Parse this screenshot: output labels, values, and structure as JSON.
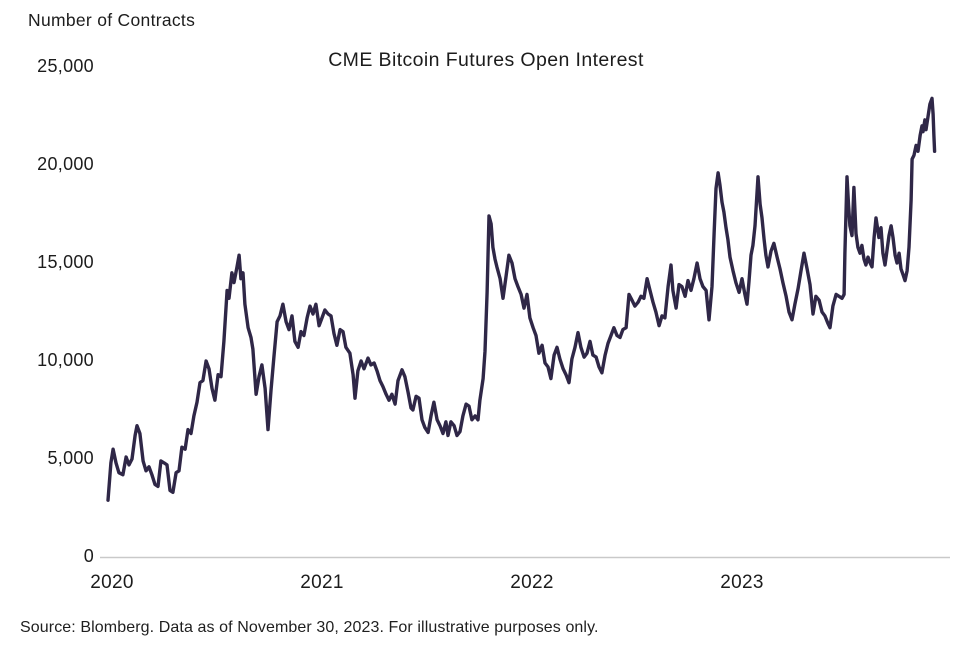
{
  "header": {
    "units_label": "Number of Contracts"
  },
  "footer": {
    "source_note": "Source: Blomberg. Data as of November 30, 2023. For illustrative purposes only."
  },
  "chart_data": {
    "type": "line",
    "title": "CME Bitcoin Futures Open Interest",
    "ylabel": "Number of Contracts",
    "xlabel": "",
    "series_name": "CME Bitcoin Futures Open Interest",
    "line_color": "#2f2747",
    "axis_color": "#c9c9c9",
    "text_color": "#1c1c1c",
    "grid": false,
    "legend": "none",
    "ylim": [
      0,
      25000
    ],
    "xlim": [
      2019.88,
      2023.97
    ],
    "y_ticks": [
      "25,000",
      "20,000",
      "15,000",
      "10,000",
      "5,000",
      "0"
    ],
    "y_tick_values": [
      25000,
      20000,
      15000,
      10000,
      5000,
      0
    ],
    "x_ticks": [
      "2020",
      "2021",
      "2022",
      "2023"
    ],
    "x_tick_values": [
      2020,
      2021,
      2022,
      2023
    ],
    "points": [
      [
        2019.981,
        2900
      ],
      [
        2019.995,
        4800
      ],
      [
        2020.005,
        5500
      ],
      [
        2020.019,
        4800
      ],
      [
        2020.033,
        4300
      ],
      [
        2020.052,
        4200
      ],
      [
        2020.067,
        5100
      ],
      [
        2020.081,
        4700
      ],
      [
        2020.095,
        5000
      ],
      [
        2020.11,
        6200
      ],
      [
        2020.119,
        6700
      ],
      [
        2020.133,
        6300
      ],
      [
        2020.148,
        4900
      ],
      [
        2020.162,
        4400
      ],
      [
        2020.176,
        4600
      ],
      [
        2020.19,
        4200
      ],
      [
        2020.205,
        3700
      ],
      [
        2020.219,
        3600
      ],
      [
        2020.233,
        4900
      ],
      [
        2020.248,
        4800
      ],
      [
        2020.262,
        4700
      ],
      [
        2020.276,
        3400
      ],
      [
        2020.29,
        3300
      ],
      [
        2020.305,
        4300
      ],
      [
        2020.319,
        4400
      ],
      [
        2020.333,
        5600
      ],
      [
        2020.348,
        5500
      ],
      [
        2020.362,
        6500
      ],
      [
        2020.376,
        6300
      ],
      [
        2020.39,
        7200
      ],
      [
        2020.405,
        7900
      ],
      [
        2020.419,
        8900
      ],
      [
        2020.433,
        9000
      ],
      [
        2020.448,
        10000
      ],
      [
        2020.462,
        9600
      ],
      [
        2020.476,
        8600
      ],
      [
        2020.49,
        8000
      ],
      [
        2020.505,
        9300
      ],
      [
        2020.519,
        9200
      ],
      [
        2020.533,
        11000
      ],
      [
        2020.548,
        13600
      ],
      [
        2020.557,
        13200
      ],
      [
        2020.571,
        14500
      ],
      [
        2020.581,
        14000
      ],
      [
        2020.595,
        14800
      ],
      [
        2020.605,
        15400
      ],
      [
        2020.614,
        14200
      ],
      [
        2020.624,
        14500
      ],
      [
        2020.633,
        12900
      ],
      [
        2020.648,
        11700
      ],
      [
        2020.662,
        11200
      ],
      [
        2020.671,
        10600
      ],
      [
        2020.686,
        8300
      ],
      [
        2020.7,
        9200
      ],
      [
        2020.714,
        9800
      ],
      [
        2020.729,
        8600
      ],
      [
        2020.743,
        6500
      ],
      [
        2020.757,
        8500
      ],
      [
        2020.771,
        10200
      ],
      [
        2020.786,
        12000
      ],
      [
        2020.8,
        12300
      ],
      [
        2020.814,
        12900
      ],
      [
        2020.829,
        12000
      ],
      [
        2020.843,
        11600
      ],
      [
        2020.857,
        12300
      ],
      [
        2020.871,
        11000
      ],
      [
        2020.886,
        10700
      ],
      [
        2020.9,
        11500
      ],
      [
        2020.914,
        11300
      ],
      [
        2020.929,
        12200
      ],
      [
        2020.943,
        12800
      ],
      [
        2020.957,
        12400
      ],
      [
        2020.971,
        12900
      ],
      [
        2020.986,
        11800
      ],
      [
        2021.0,
        12200
      ],
      [
        2021.014,
        12600
      ],
      [
        2021.029,
        12400
      ],
      [
        2021.043,
        12300
      ],
      [
        2021.057,
        11400
      ],
      [
        2021.071,
        10800
      ],
      [
        2021.086,
        11600
      ],
      [
        2021.1,
        11500
      ],
      [
        2021.114,
        10700
      ],
      [
        2021.133,
        10400
      ],
      [
        2021.148,
        9300
      ],
      [
        2021.157,
        8100
      ],
      [
        2021.171,
        9500
      ],
      [
        2021.186,
        10000
      ],
      [
        2021.2,
        9600
      ],
      [
        2021.219,
        10150
      ],
      [
        2021.233,
        9800
      ],
      [
        2021.248,
        9900
      ],
      [
        2021.262,
        9500
      ],
      [
        2021.276,
        9000
      ],
      [
        2021.29,
        8700
      ],
      [
        2021.305,
        8300
      ],
      [
        2021.319,
        8000
      ],
      [
        2021.333,
        8300
      ],
      [
        2021.348,
        7800
      ],
      [
        2021.362,
        9000
      ],
      [
        2021.381,
        9550
      ],
      [
        2021.395,
        9200
      ],
      [
        2021.41,
        8400
      ],
      [
        2021.424,
        7600
      ],
      [
        2021.433,
        7500
      ],
      [
        2021.448,
        8200
      ],
      [
        2021.462,
        8100
      ],
      [
        2021.476,
        7000
      ],
      [
        2021.49,
        6600
      ],
      [
        2021.505,
        6350
      ],
      [
        2021.519,
        7200
      ],
      [
        2021.533,
        7900
      ],
      [
        2021.548,
        7000
      ],
      [
        2021.562,
        6700
      ],
      [
        2021.576,
        6300
      ],
      [
        2021.59,
        6900
      ],
      [
        2021.6,
        6200
      ],
      [
        2021.614,
        6900
      ],
      [
        2021.629,
        6700
      ],
      [
        2021.643,
        6200
      ],
      [
        2021.657,
        6400
      ],
      [
        2021.671,
        7200
      ],
      [
        2021.686,
        7800
      ],
      [
        2021.7,
        7700
      ],
      [
        2021.714,
        7000
      ],
      [
        2021.729,
        7200
      ],
      [
        2021.743,
        7000
      ],
      [
        2021.752,
        8000
      ],
      [
        2021.767,
        9100
      ],
      [
        2021.776,
        10500
      ],
      [
        2021.786,
        13500
      ],
      [
        2021.795,
        17400
      ],
      [
        2021.805,
        17000
      ],
      [
        2021.814,
        15800
      ],
      [
        2021.824,
        15200
      ],
      [
        2021.833,
        14800
      ],
      [
        2021.848,
        14200
      ],
      [
        2021.862,
        13200
      ],
      [
        2021.876,
        14300
      ],
      [
        2021.89,
        15400
      ],
      [
        2021.905,
        15000
      ],
      [
        2021.919,
        14200
      ],
      [
        2021.933,
        13800
      ],
      [
        2021.948,
        13400
      ],
      [
        2021.962,
        12700
      ],
      [
        2021.976,
        13400
      ],
      [
        2021.99,
        12200
      ],
      [
        2022.005,
        11700
      ],
      [
        2022.019,
        11300
      ],
      [
        2022.033,
        10400
      ],
      [
        2022.048,
        10800
      ],
      [
        2022.062,
        9900
      ],
      [
        2022.076,
        9700
      ],
      [
        2022.09,
        9100
      ],
      [
        2022.105,
        10300
      ],
      [
        2022.119,
        10700
      ],
      [
        2022.133,
        10100
      ],
      [
        2022.148,
        9600
      ],
      [
        2022.162,
        9300
      ],
      [
        2022.176,
        8900
      ],
      [
        2022.19,
        10100
      ],
      [
        2022.205,
        10700
      ],
      [
        2022.219,
        11450
      ],
      [
        2022.233,
        10700
      ],
      [
        2022.248,
        10200
      ],
      [
        2022.262,
        10400
      ],
      [
        2022.276,
        11000
      ],
      [
        2022.29,
        10300
      ],
      [
        2022.305,
        10200
      ],
      [
        2022.319,
        9700
      ],
      [
        2022.333,
        9400
      ],
      [
        2022.348,
        10300
      ],
      [
        2022.362,
        10900
      ],
      [
        2022.376,
        11300
      ],
      [
        2022.39,
        11700
      ],
      [
        2022.405,
        11300
      ],
      [
        2022.419,
        11200
      ],
      [
        2022.433,
        11600
      ],
      [
        2022.448,
        11700
      ],
      [
        2022.462,
        13400
      ],
      [
        2022.476,
        13100
      ],
      [
        2022.49,
        12800
      ],
      [
        2022.505,
        13000
      ],
      [
        2022.519,
        13300
      ],
      [
        2022.533,
        13200
      ],
      [
        2022.548,
        14200
      ],
      [
        2022.562,
        13600
      ],
      [
        2022.576,
        13000
      ],
      [
        2022.59,
        12500
      ],
      [
        2022.605,
        11800
      ],
      [
        2022.619,
        12300
      ],
      [
        2022.633,
        12200
      ],
      [
        2022.648,
        13800
      ],
      [
        2022.662,
        14900
      ],
      [
        2022.671,
        13600
      ],
      [
        2022.686,
        12700
      ],
      [
        2022.7,
        13900
      ],
      [
        2022.714,
        13800
      ],
      [
        2022.729,
        13300
      ],
      [
        2022.743,
        14100
      ],
      [
        2022.757,
        13600
      ],
      [
        2022.771,
        14200
      ],
      [
        2022.786,
        15000
      ],
      [
        2022.8,
        14200
      ],
      [
        2022.814,
        13800
      ],
      [
        2022.829,
        13600
      ],
      [
        2022.843,
        12100
      ],
      [
        2022.857,
        13800
      ],
      [
        2022.867,
        16500
      ],
      [
        2022.876,
        18800
      ],
      [
        2022.886,
        19600
      ],
      [
        2022.895,
        19000
      ],
      [
        2022.905,
        18100
      ],
      [
        2022.914,
        17600
      ],
      [
        2022.924,
        16800
      ],
      [
        2022.933,
        16200
      ],
      [
        2022.943,
        15300
      ],
      [
        2022.957,
        14600
      ],
      [
        2022.971,
        14000
      ],
      [
        2022.986,
        13500
      ],
      [
        2023.0,
        14200
      ],
      [
        2023.014,
        13400
      ],
      [
        2023.024,
        12900
      ],
      [
        2023.033,
        14000
      ],
      [
        2023.043,
        15400
      ],
      [
        2023.052,
        15900
      ],
      [
        2023.062,
        16900
      ],
      [
        2023.076,
        19400
      ],
      [
        2023.086,
        18000
      ],
      [
        2023.095,
        17300
      ],
      [
        2023.105,
        16200
      ],
      [
        2023.114,
        15400
      ],
      [
        2023.124,
        14800
      ],
      [
        2023.138,
        15600
      ],
      [
        2023.152,
        16000
      ],
      [
        2023.167,
        15300
      ],
      [
        2023.181,
        14700
      ],
      [
        2023.195,
        14000
      ],
      [
        2023.21,
        13300
      ],
      [
        2023.224,
        12500
      ],
      [
        2023.238,
        12100
      ],
      [
        2023.252,
        12900
      ],
      [
        2023.267,
        13700
      ],
      [
        2023.281,
        14600
      ],
      [
        2023.295,
        15500
      ],
      [
        2023.31,
        14700
      ],
      [
        2023.324,
        13900
      ],
      [
        2023.338,
        12400
      ],
      [
        2023.352,
        13300
      ],
      [
        2023.367,
        13100
      ],
      [
        2023.381,
        12500
      ],
      [
        2023.395,
        12300
      ],
      [
        2023.41,
        11900
      ],
      [
        2023.419,
        11700
      ],
      [
        2023.433,
        12800
      ],
      [
        2023.448,
        13400
      ],
      [
        2023.462,
        13300
      ],
      [
        2023.476,
        13200
      ],
      [
        2023.486,
        13400
      ],
      [
        2023.49,
        15500
      ],
      [
        2023.5,
        19400
      ],
      [
        2023.507,
        18000
      ],
      [
        2023.514,
        16900
      ],
      [
        2023.524,
        16400
      ],
      [
        2023.533,
        18850
      ],
      [
        2023.543,
        16500
      ],
      [
        2023.552,
        15800
      ],
      [
        2023.562,
        15500
      ],
      [
        2023.571,
        15900
      ],
      [
        2023.581,
        15200
      ],
      [
        2023.59,
        14900
      ],
      [
        2023.6,
        15300
      ],
      [
        2023.61,
        15000
      ],
      [
        2023.619,
        14800
      ],
      [
        2023.629,
        16300
      ],
      [
        2023.638,
        17300
      ],
      [
        2023.652,
        16300
      ],
      [
        2023.662,
        16800
      ],
      [
        2023.671,
        15500
      ],
      [
        2023.681,
        14900
      ],
      [
        2023.69,
        15600
      ],
      [
        2023.7,
        16400
      ],
      [
        2023.71,
        16900
      ],
      [
        2023.719,
        16300
      ],
      [
        2023.729,
        15400
      ],
      [
        2023.738,
        15000
      ],
      [
        2023.748,
        15500
      ],
      [
        2023.757,
        14700
      ],
      [
        2023.767,
        14400
      ],
      [
        2023.776,
        14100
      ],
      [
        2023.786,
        14600
      ],
      [
        2023.795,
        15800
      ],
      [
        2023.805,
        18200
      ],
      [
        2023.81,
        20300
      ],
      [
        2023.819,
        20500
      ],
      [
        2023.829,
        21000
      ],
      [
        2023.838,
        20700
      ],
      [
        2023.848,
        21500
      ],
      [
        2023.857,
        22000
      ],
      [
        2023.862,
        21700
      ],
      [
        2023.871,
        22300
      ],
      [
        2023.876,
        21800
      ],
      [
        2023.886,
        22500
      ],
      [
        2023.895,
        23100
      ],
      [
        2023.905,
        23400
      ],
      [
        2023.91,
        22600
      ],
      [
        2023.914,
        21500
      ],
      [
        2023.917,
        20700
      ]
    ]
  }
}
